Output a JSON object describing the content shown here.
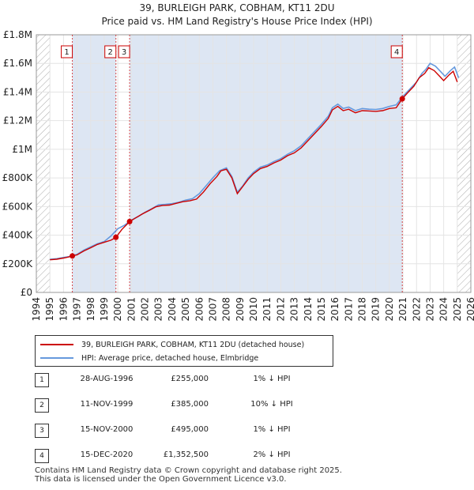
{
  "title": "39, BURLEIGH PARK, COBHAM, KT11 2DU",
  "subtitle": "Price paid vs. HM Land Registry's House Price Index (HPI)",
  "colors": {
    "property": "#cc0000",
    "hpi": "#6699dd",
    "marker_line": "#cc0000",
    "shade": "#dde6f3",
    "hatch": "#999999"
  },
  "chart_data": {
    "type": "line",
    "title": "39, BURLEIGH PARK, COBHAM, KT11 2DU",
    "subtitle": "Price paid vs. HM Land Registry's House Price Index (HPI)",
    "xlabel": "",
    "ylabel": "",
    "xlim": [
      1994,
      2026
    ],
    "ylim": [
      0,
      1800000
    ],
    "x_ticks": [
      1994,
      1995,
      1996,
      1997,
      1998,
      1999,
      2000,
      2001,
      2002,
      2003,
      2004,
      2005,
      2006,
      2007,
      2008,
      2009,
      2010,
      2011,
      2012,
      2013,
      2014,
      2015,
      2016,
      2017,
      2018,
      2019,
      2020,
      2021,
      2022,
      2023,
      2024,
      2025,
      2026
    ],
    "y_ticks": [
      0,
      200000,
      400000,
      600000,
      800000,
      1000000,
      1200000,
      1400000,
      1600000,
      1800000
    ],
    "y_tick_labels": [
      "£0",
      "£200K",
      "£400K",
      "£600K",
      "£800K",
      "£1M",
      "£1.2M",
      "£1.4M",
      "£1.6M",
      "£1.8M"
    ],
    "series": [
      {
        "name": "39, BURLEIGH PARK, COBHAM, KT11 2DU (detached house)",
        "x": [
          1995.0,
          1995.5,
          1996.0,
          1996.4,
          1996.65,
          1997.0,
          1997.5,
          1998.0,
          1998.5,
          1999.0,
          1999.5,
          1999.86,
          2000.3,
          2000.87,
          2001.3,
          2001.8,
          2002.3,
          2002.8,
          2003.3,
          2003.8,
          2004.3,
          2004.8,
          2005.3,
          2005.8,
          2006.3,
          2006.8,
          2007.3,
          2007.6,
          2008.0,
          2008.4,
          2008.8,
          2009.2,
          2009.6,
          2010.0,
          2010.5,
          2011.0,
          2011.5,
          2012.0,
          2012.5,
          2013.0,
          2013.5,
          2014.0,
          2014.5,
          2015.0,
          2015.5,
          2015.8,
          2016.2,
          2016.6,
          2017.0,
          2017.5,
          2018.0,
          2018.5,
          2019.0,
          2019.5,
          2020.0,
          2020.5,
          2020.95,
          2021.3,
          2021.8,
          2022.2,
          2022.6,
          2022.9,
          2023.3,
          2023.7,
          2024.0,
          2024.4,
          2024.7,
          2025.0
        ],
        "y": [
          228000,
          232000,
          240000,
          248000,
          255000,
          262000,
          290000,
          312000,
          335000,
          350000,
          365000,
          385000,
          440000,
          495000,
          520000,
          548000,
          572000,
          598000,
          608000,
          610000,
          622000,
          634000,
          640000,
          652000,
          700000,
          760000,
          810000,
          850000,
          860000,
          800000,
          690000,
          740000,
          790000,
          830000,
          865000,
          880000,
          905000,
          925000,
          955000,
          975000,
          1010000,
          1060000,
          1110000,
          1160000,
          1215000,
          1275000,
          1300000,
          1270000,
          1280000,
          1255000,
          1270000,
          1268000,
          1265000,
          1270000,
          1285000,
          1290000,
          1352500,
          1390000,
          1440000,
          1500000,
          1530000,
          1570000,
          1550000,
          1510000,
          1480000,
          1520000,
          1545000,
          1470000
        ]
      },
      {
        "name": "HPI: Average price, detached house, Elmbridge",
        "x": [
          1995.0,
          1995.5,
          1996.0,
          1996.5,
          1997.0,
          1997.5,
          1998.0,
          1998.5,
          1999.0,
          1999.5,
          2000.0,
          2000.5,
          2001.0,
          2001.5,
          2002.0,
          2002.5,
          2003.0,
          2003.5,
          2004.0,
          2004.5,
          2005.0,
          2005.5,
          2006.0,
          2006.5,
          2007.0,
          2007.5,
          2008.0,
          2008.4,
          2008.8,
          2009.2,
          2009.6,
          2010.0,
          2010.5,
          2011.0,
          2011.5,
          2012.0,
          2012.5,
          2013.0,
          2013.5,
          2014.0,
          2014.5,
          2015.0,
          2015.5,
          2015.8,
          2016.2,
          2016.6,
          2017.0,
          2017.5,
          2018.0,
          2018.5,
          2019.0,
          2019.5,
          2020.0,
          2020.5,
          2021.0,
          2021.5,
          2022.0,
          2022.4,
          2022.7,
          2023.0,
          2023.4,
          2023.8,
          2024.1,
          2024.5,
          2024.8,
          2025.1
        ],
        "y": [
          232000,
          236000,
          244000,
          252000,
          266000,
          296000,
          318000,
          340000,
          355000,
          395000,
          445000,
          470000,
          505000,
          530000,
          560000,
          585000,
          612000,
          615000,
          620000,
          630000,
          645000,
          655000,
          690000,
          745000,
          800000,
          850000,
          870000,
          810000,
          700000,
          745000,
          800000,
          840000,
          875000,
          890000,
          915000,
          935000,
          965000,
          990000,
          1025000,
          1075000,
          1125000,
          1175000,
          1230000,
          1290000,
          1315000,
          1285000,
          1295000,
          1270000,
          1285000,
          1280000,
          1278000,
          1285000,
          1300000,
          1310000,
          1370000,
          1420000,
          1470000,
          1530000,
          1560000,
          1600000,
          1580000,
          1540000,
          1510000,
          1550000,
          1575000,
          1500000
        ]
      }
    ],
    "sales": [
      {
        "id": "1",
        "x": 1996.65,
        "price": 255000
      },
      {
        "id": "2",
        "x": 1999.86,
        "price": 385000
      },
      {
        "id": "3",
        "x": 2000.87,
        "price": 495000
      },
      {
        "id": "4",
        "x": 2020.95,
        "price": 1352500
      }
    ]
  },
  "legend": {
    "property": "39, BURLEIGH PARK, COBHAM, KT11 2DU (detached house)",
    "hpi": "HPI: Average price, detached house, Elmbridge"
  },
  "transactions": [
    {
      "num": "1",
      "date": "28-AUG-1996",
      "price": "£255,000",
      "hpi": "1% ↓ HPI"
    },
    {
      "num": "2",
      "date": "11-NOV-1999",
      "price": "£385,000",
      "hpi": "10% ↓ HPI"
    },
    {
      "num": "3",
      "date": "15-NOV-2000",
      "price": "£495,000",
      "hpi": "1% ↓ HPI"
    },
    {
      "num": "4",
      "date": "15-DEC-2020",
      "price": "£1,352,500",
      "hpi": "2% ↓ HPI"
    }
  ],
  "footer": {
    "line1": "Contains HM Land Registry data © Crown copyright and database right 2025.",
    "line2": "This data is licensed under the Open Government Licence v3.0."
  }
}
